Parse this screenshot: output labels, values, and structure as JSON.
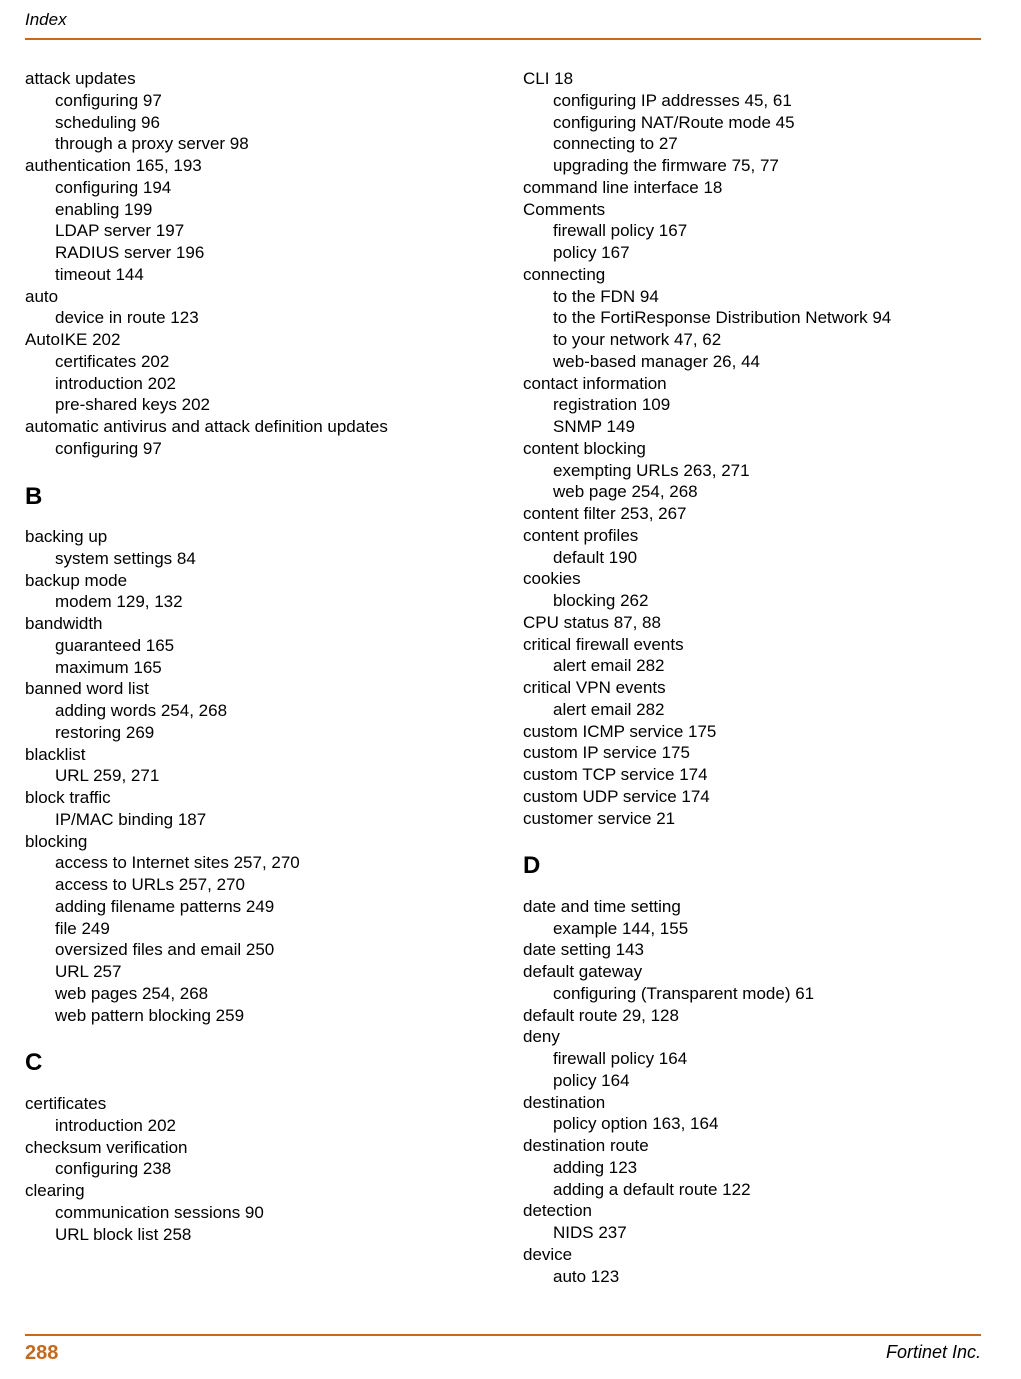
{
  "header": {
    "title": "Index"
  },
  "footer": {
    "page": "288",
    "company": "Fortinet Inc."
  },
  "left": {
    "entries": [
      {
        "t": "term",
        "text": "attack updates"
      },
      {
        "t": "sub",
        "text": "configuring 97"
      },
      {
        "t": "sub",
        "text": "scheduling 96"
      },
      {
        "t": "sub",
        "text": "through a proxy server 98"
      },
      {
        "t": "term",
        "text": "authentication 165, 193"
      },
      {
        "t": "sub",
        "text": "configuring 194"
      },
      {
        "t": "sub",
        "text": "enabling 199"
      },
      {
        "t": "sub",
        "text": "LDAP server 197"
      },
      {
        "t": "sub",
        "text": "RADIUS server 196"
      },
      {
        "t": "sub",
        "text": "timeout 144"
      },
      {
        "t": "term",
        "text": "auto"
      },
      {
        "t": "sub",
        "text": "device in route 123"
      },
      {
        "t": "term",
        "text": "AutoIKE 202"
      },
      {
        "t": "sub",
        "text": "certificates 202"
      },
      {
        "t": "sub",
        "text": "introduction 202"
      },
      {
        "t": "sub",
        "text": "pre-shared keys 202"
      },
      {
        "t": "term",
        "text": "automatic antivirus and attack definition updates"
      },
      {
        "t": "sub",
        "text": "configuring 97"
      },
      {
        "t": "head",
        "text": "B"
      },
      {
        "t": "term",
        "text": "backing up"
      },
      {
        "t": "sub",
        "text": "system settings 84"
      },
      {
        "t": "term",
        "text": "backup mode"
      },
      {
        "t": "sub",
        "text": "modem 129, 132"
      },
      {
        "t": "term",
        "text": "bandwidth"
      },
      {
        "t": "sub",
        "text": "guaranteed 165"
      },
      {
        "t": "sub",
        "text": "maximum 165"
      },
      {
        "t": "term",
        "text": "banned word list"
      },
      {
        "t": "sub",
        "text": "adding words 254, 268"
      },
      {
        "t": "sub",
        "text": "restoring 269"
      },
      {
        "t": "term",
        "text": "blacklist"
      },
      {
        "t": "sub",
        "text": "URL 259, 271"
      },
      {
        "t": "term",
        "text": "block traffic"
      },
      {
        "t": "sub",
        "text": "IP/MAC binding 187"
      },
      {
        "t": "term",
        "text": "blocking"
      },
      {
        "t": "sub",
        "text": "access to Internet sites 257, 270"
      },
      {
        "t": "sub",
        "text": "access to URLs 257, 270"
      },
      {
        "t": "sub",
        "text": "adding filename patterns 249"
      },
      {
        "t": "sub",
        "text": "file 249"
      },
      {
        "t": "sub",
        "text": "oversized files and email 250"
      },
      {
        "t": "sub",
        "text": "URL 257"
      },
      {
        "t": "sub",
        "text": "web pages 254, 268"
      },
      {
        "t": "sub",
        "text": "web pattern blocking 259"
      },
      {
        "t": "head",
        "text": "C"
      },
      {
        "t": "term",
        "text": "certificates"
      },
      {
        "t": "sub",
        "text": "introduction 202"
      },
      {
        "t": "term",
        "text": "checksum verification"
      },
      {
        "t": "sub",
        "text": "configuring 238"
      },
      {
        "t": "term",
        "text": "clearing"
      },
      {
        "t": "sub",
        "text": "communication sessions 90"
      },
      {
        "t": "sub",
        "text": "URL block list 258"
      }
    ]
  },
  "right": {
    "entries": [
      {
        "t": "term",
        "text": "CLI 18"
      },
      {
        "t": "sub",
        "text": "configuring IP addresses 45, 61"
      },
      {
        "t": "sub",
        "text": "configuring NAT/Route mode 45"
      },
      {
        "t": "sub",
        "text": "connecting to 27"
      },
      {
        "t": "sub",
        "text": "upgrading the firmware 75, 77"
      },
      {
        "t": "term",
        "text": "command line interface 18"
      },
      {
        "t": "term",
        "text": "Comments"
      },
      {
        "t": "sub",
        "text": "firewall policy 167"
      },
      {
        "t": "sub",
        "text": "policy 167"
      },
      {
        "t": "term",
        "text": "connecting"
      },
      {
        "t": "sub",
        "text": "to the FDN 94"
      },
      {
        "t": "sub",
        "text": "to the FortiResponse Distribution Network 94"
      },
      {
        "t": "sub",
        "text": "to your network 47, 62"
      },
      {
        "t": "sub",
        "text": "web-based manager 26, 44"
      },
      {
        "t": "term",
        "text": "contact information"
      },
      {
        "t": "sub",
        "text": "registration 109"
      },
      {
        "t": "sub",
        "text": "SNMP 149"
      },
      {
        "t": "term",
        "text": "content blocking"
      },
      {
        "t": "sub",
        "text": "exempting URLs 263, 271"
      },
      {
        "t": "sub",
        "text": "web page 254, 268"
      },
      {
        "t": "term",
        "text": "content filter 253, 267"
      },
      {
        "t": "term",
        "text": "content profiles"
      },
      {
        "t": "sub",
        "text": "default 190"
      },
      {
        "t": "term",
        "text": "cookies"
      },
      {
        "t": "sub",
        "text": "blocking 262"
      },
      {
        "t": "term",
        "text": "CPU status 87, 88"
      },
      {
        "t": "term",
        "text": "critical firewall events"
      },
      {
        "t": "sub",
        "text": "alert email 282"
      },
      {
        "t": "term",
        "text": "critical VPN events"
      },
      {
        "t": "sub",
        "text": "alert email 282"
      },
      {
        "t": "term",
        "text": "custom ICMP service 175"
      },
      {
        "t": "term",
        "text": "custom IP service 175"
      },
      {
        "t": "term",
        "text": "custom TCP service 174"
      },
      {
        "t": "term",
        "text": "custom UDP service 174"
      },
      {
        "t": "term",
        "text": "customer service 21"
      },
      {
        "t": "head",
        "text": "D"
      },
      {
        "t": "term",
        "text": "date and time setting"
      },
      {
        "t": "sub",
        "text": "example 144, 155"
      },
      {
        "t": "term",
        "text": "date setting 143"
      },
      {
        "t": "term",
        "text": "default gateway"
      },
      {
        "t": "sub",
        "text": "configuring (Transparent mode) 61"
      },
      {
        "t": "term",
        "text": "default route 29, 128"
      },
      {
        "t": "term",
        "text": "deny"
      },
      {
        "t": "sub",
        "text": "firewall policy 164"
      },
      {
        "t": "sub",
        "text": "policy 164"
      },
      {
        "t": "term",
        "text": "destination"
      },
      {
        "t": "sub",
        "text": "policy option 163, 164"
      },
      {
        "t": "term",
        "text": "destination route"
      },
      {
        "t": "sub",
        "text": "adding 123"
      },
      {
        "t": "sub",
        "text": "adding a default route 122"
      },
      {
        "t": "term",
        "text": "detection"
      },
      {
        "t": "sub",
        "text": "NIDS 237"
      },
      {
        "t": "term",
        "text": "device"
      },
      {
        "t": "sub",
        "text": "auto 123"
      }
    ]
  }
}
